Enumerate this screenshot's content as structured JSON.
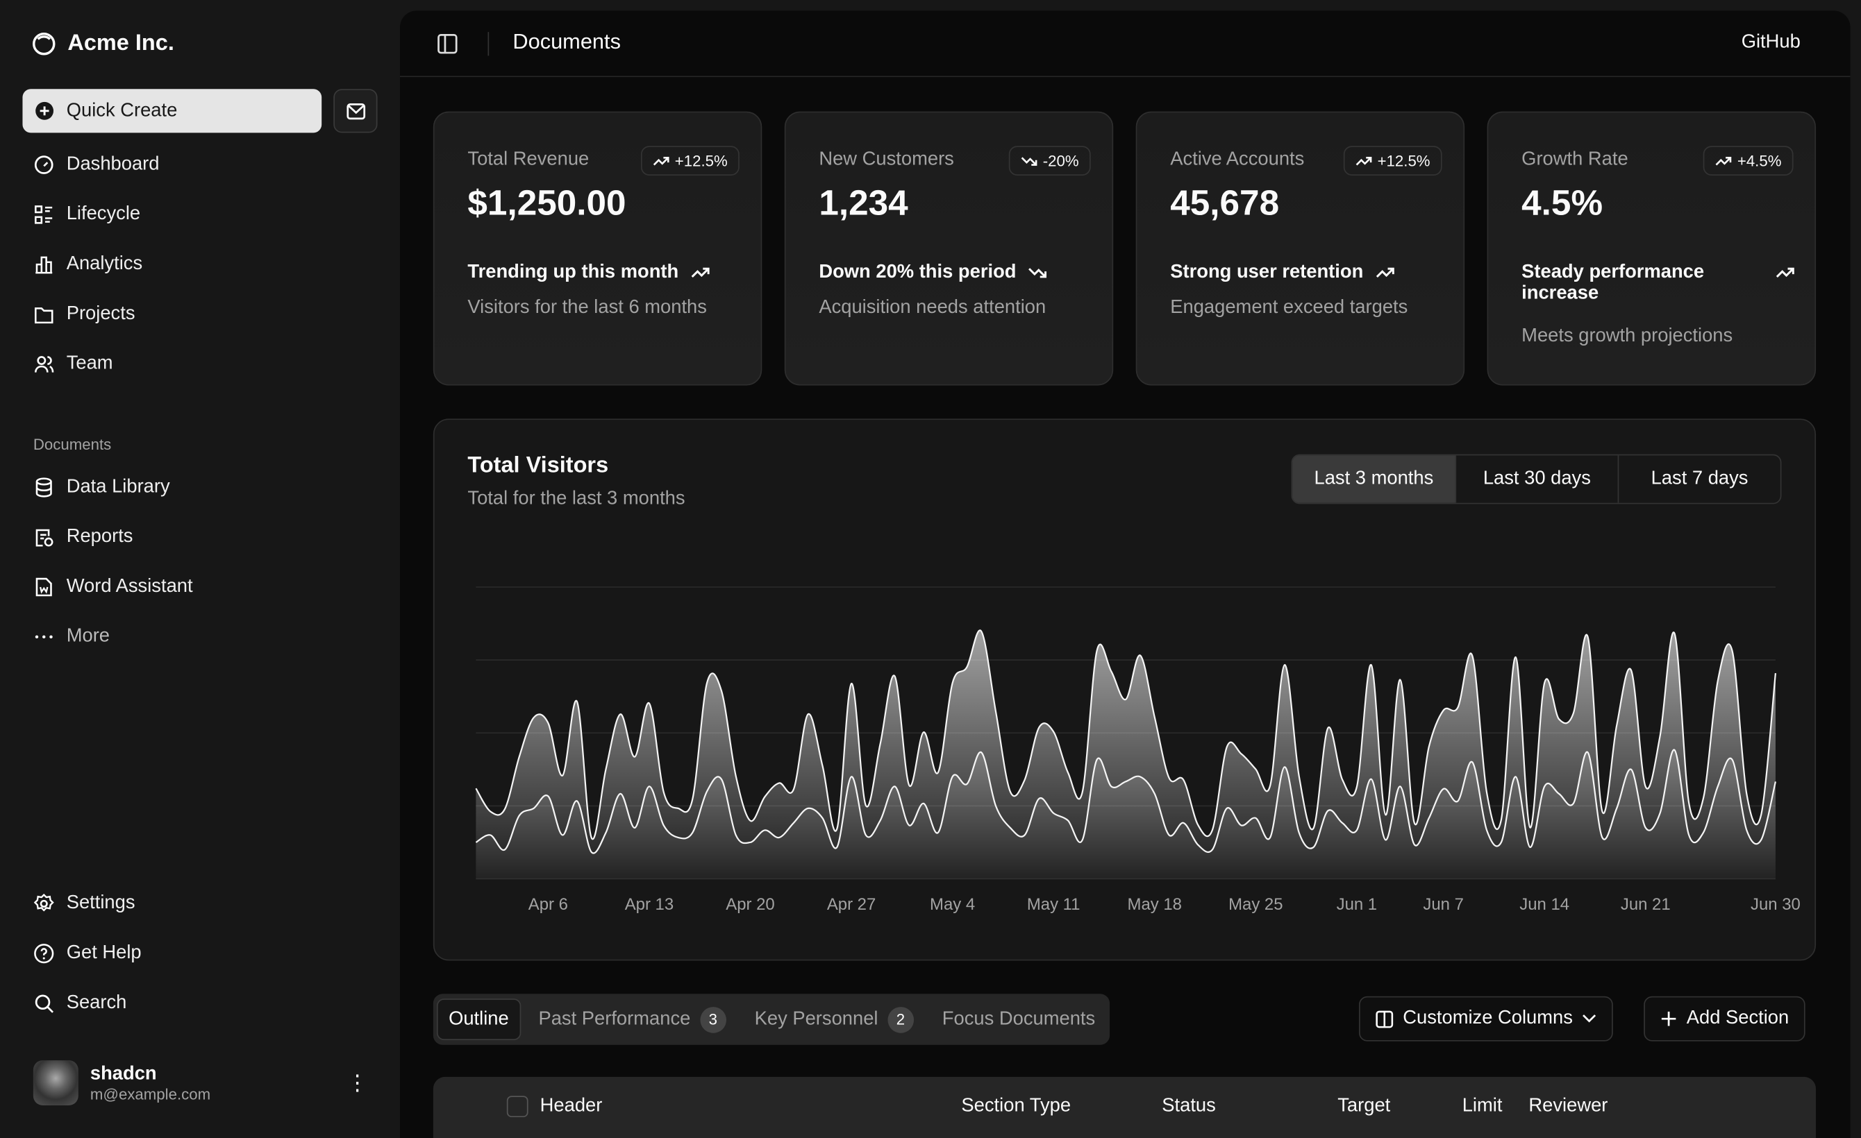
{
  "sidebar": {
    "brand": "Acme Inc.",
    "quick_create": "Quick Create",
    "nav": [
      {
        "label": "Dashboard",
        "icon": "dashboard-icon"
      },
      {
        "label": "Lifecycle",
        "icon": "list-details-icon"
      },
      {
        "label": "Analytics",
        "icon": "chart-bar-icon"
      },
      {
        "label": "Projects",
        "icon": "folder-icon"
      },
      {
        "label": "Team",
        "icon": "users-icon"
      }
    ],
    "section_label": "Documents",
    "docs": [
      {
        "label": "Data Library",
        "icon": "database-icon"
      },
      {
        "label": "Reports",
        "icon": "report-icon"
      },
      {
        "label": "Word Assistant",
        "icon": "file-word-icon"
      },
      {
        "label": "More",
        "icon": "dots-icon"
      }
    ],
    "secondary": [
      {
        "label": "Settings",
        "icon": "settings-icon"
      },
      {
        "label": "Get Help",
        "icon": "help-icon"
      },
      {
        "label": "Search",
        "icon": "search-icon"
      }
    ],
    "user": {
      "name": "shadcn",
      "email": "m@example.com"
    }
  },
  "header": {
    "title": "Documents",
    "github": "GitHub"
  },
  "cards": [
    {
      "label": "Total Revenue",
      "badge": "+12.5%",
      "trend": "up",
      "value": "$1,250.00",
      "line1": "Trending up this month",
      "line2": "Visitors for the last 6 months"
    },
    {
      "label": "New Customers",
      "badge": "-20%",
      "trend": "down",
      "value": "1,234",
      "line1": "Down 20% this period",
      "line2": "Acquisition needs attention"
    },
    {
      "label": "Active Accounts",
      "badge": "+12.5%",
      "trend": "up",
      "value": "45,678",
      "line1": "Strong user retention",
      "line2": "Engagement exceed targets"
    },
    {
      "label": "Growth Rate",
      "badge": "+4.5%",
      "trend": "up",
      "value": "4.5%",
      "line1": "Steady performance increase",
      "line2": "Meets growth projections"
    }
  ],
  "chart_card": {
    "title": "Total Visitors",
    "subtitle": "Total for the last 3 months",
    "ranges": [
      "Last 3 months",
      "Last 30 days",
      "Last 7 days"
    ],
    "selected_range": "Last 3 months"
  },
  "chart_data": {
    "type": "area",
    "stacked": true,
    "ylim": [
      0,
      1200
    ],
    "grid": true,
    "x_start": "2024-04-01",
    "x_end": "2024-06-30",
    "tick_labels": [
      [
        "Apr 6",
        5
      ],
      [
        "Apr 13",
        12
      ],
      [
        "Apr 20",
        19
      ],
      [
        "Apr 27",
        26
      ],
      [
        "May 4",
        33
      ],
      [
        "May 11",
        40
      ],
      [
        "May 18",
        47
      ],
      [
        "May 25",
        54
      ],
      [
        "Jun 1",
        61
      ],
      [
        "Jun 7",
        67
      ],
      [
        "Jun 14",
        74
      ],
      [
        "Jun 21",
        81
      ],
      [
        "Jun 30",
        90
      ]
    ],
    "series": [
      {
        "key": "mobile",
        "values": [
          150,
          180,
          120,
          260,
          290,
          340,
          180,
          320,
          110,
          190,
          350,
          210,
          380,
          220,
          170,
          190,
          360,
          410,
          180,
          150,
          200,
          170,
          230,
          290,
          250,
          130,
          420,
          180,
          240,
          380,
          220,
          310,
          190,
          420,
          390,
          520,
          300,
          210,
          180,
          330,
          270,
          240,
          160,
          490,
          380,
          400,
          420,
          350,
          180,
          230,
          140,
          120,
          290,
          220,
          250,
          170,
          460,
          190,
          130,
          280,
          230,
          200,
          410,
          160,
          380,
          140,
          250,
          370,
          320,
          480,
          200,
          150,
          420,
          130,
          380,
          350,
          310,
          520,
          170,
          290,
          450,
          210,
          270,
          530,
          180,
          190,
          380,
          490,
          200,
          160,
          400
        ]
      },
      {
        "key": "desktop",
        "values": [
          222,
          97,
          167,
          242,
          373,
          301,
          245,
          409,
          59,
          261,
          327,
          292,
          342,
          137,
          120,
          138,
          446,
          364,
          243,
          89,
          137,
          224,
          138,
          387,
          215,
          75,
          383,
          122,
          315,
          454,
          165,
          293,
          247,
          385,
          481,
          498,
          388,
          149,
          227,
          293,
          335,
          197,
          197,
          448,
          473,
          338,
          499,
          315,
          235,
          177,
          82,
          81,
          252,
          294,
          201,
          213,
          420,
          233,
          78,
          340,
          178,
          178,
          470,
          103,
          439,
          88,
          294,
          323,
          385,
          438,
          155,
          92,
          492,
          81,
          426,
          307,
          371,
          475,
          107,
          341,
          408,
          169,
          317,
          480,
          132,
          141,
          434,
          448,
          149,
          103,
          446
        ]
      }
    ]
  },
  "tabs": [
    {
      "label": "Outline"
    },
    {
      "label": "Past Performance",
      "count": "3"
    },
    {
      "label": "Key Personnel",
      "count": "2"
    },
    {
      "label": "Focus Documents"
    }
  ],
  "actions": {
    "customize": "Customize Columns",
    "add": "Add Section"
  },
  "table": {
    "columns": [
      "Header",
      "Section Type",
      "Status",
      "Target",
      "Limit",
      "Reviewer"
    ]
  }
}
